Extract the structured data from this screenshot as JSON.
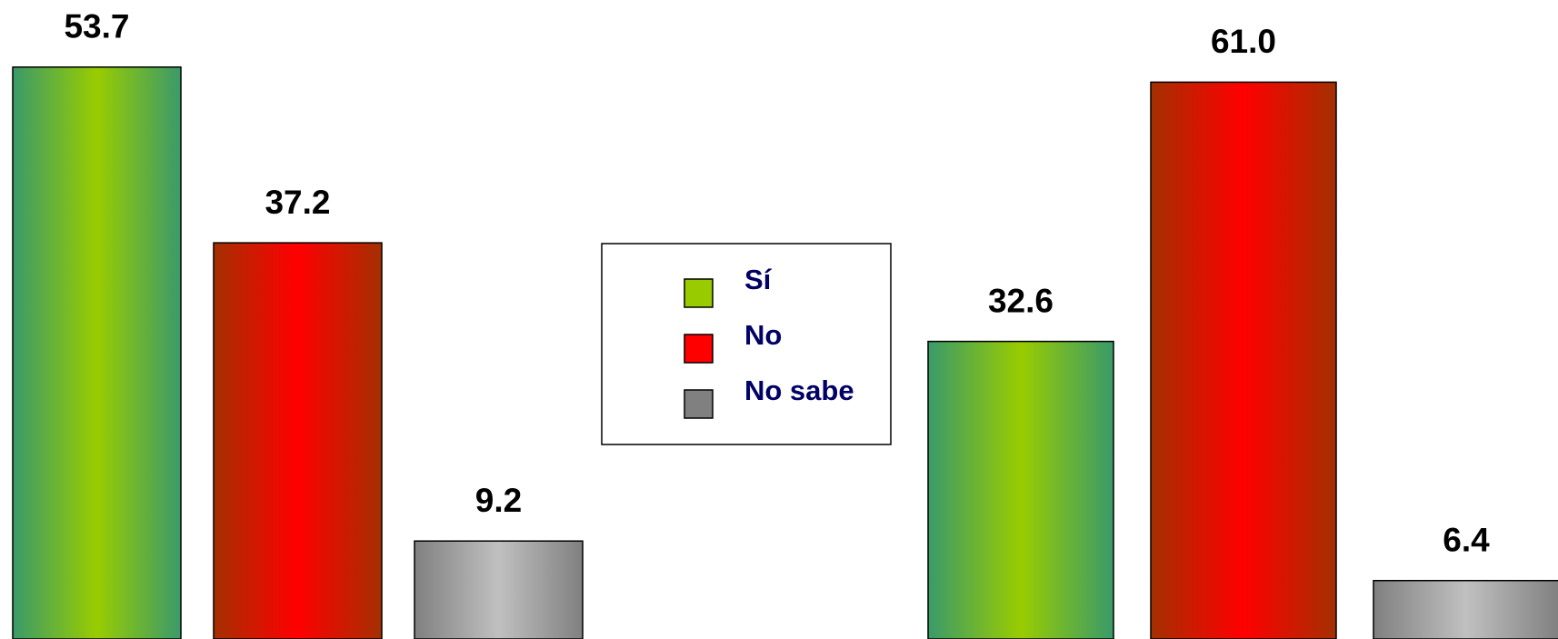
{
  "chart_data": [
    {
      "type": "bar",
      "ylim": [
        0,
        60
      ],
      "series": [
        {
          "name": "Sí",
          "color": "#99cc00",
          "values": [
            53.7
          ]
        },
        {
          "name": "No",
          "color": "#ff0000",
          "values": [
            37.2
          ]
        },
        {
          "name": "No sabe",
          "color": "#c0c0c0",
          "values": [
            9.2
          ]
        }
      ]
    },
    {
      "type": "bar",
      "ylim": [
        0,
        70
      ],
      "series": [
        {
          "color": "#99cc00",
          "values": [
            32.6
          ]
        },
        {
          "color": "#ff0000",
          "values": [
            61
          ],
          "value_labels": [
            "61.0"
          ]
        },
        {
          "color": "#c0c0c0",
          "values": [
            6.4
          ]
        }
      ]
    }
  ]
}
